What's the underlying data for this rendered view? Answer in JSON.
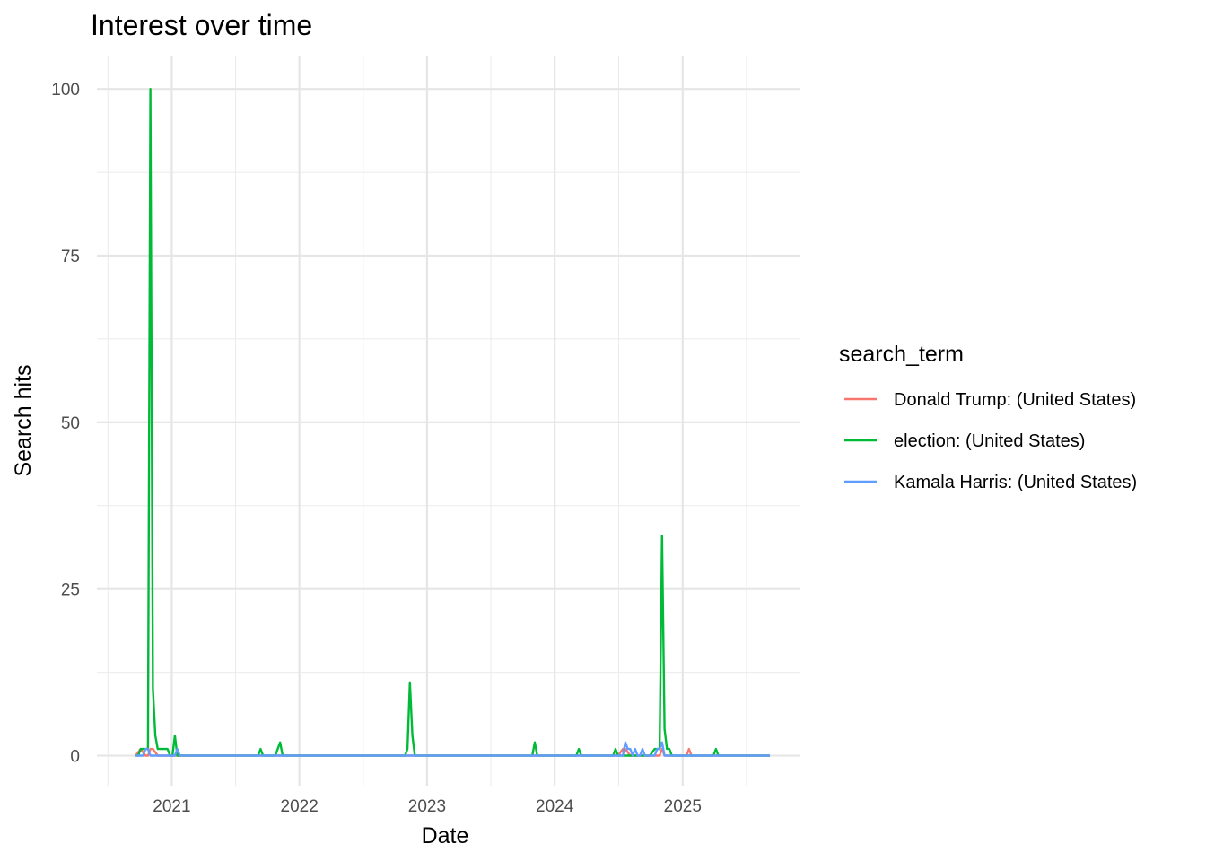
{
  "chart_data": {
    "type": "line",
    "title": "Interest over time",
    "xlabel": "Date",
    "ylabel": "Search hits",
    "x_axis_type": "date",
    "xlim": [
      "2020-06-01",
      "2025-12-01"
    ],
    "ylim": [
      -4.5,
      105
    ],
    "x_ticks": [
      "2021-01-01",
      "2022-01-01",
      "2023-01-01",
      "2024-01-01",
      "2025-01-01"
    ],
    "x_tick_labels": [
      "2021",
      "2022",
      "2023",
      "2024",
      "2025"
    ],
    "y_ticks": [
      0,
      25,
      50,
      75,
      100
    ],
    "y_tick_labels": [
      "0",
      "25",
      "50",
      "75",
      "100"
    ],
    "grid": true,
    "legend": {
      "title": "search_term",
      "position": "right"
    },
    "series": [
      {
        "name": "Donald Trump: (United States)",
        "color": "#F8766D",
        "points": [
          [
            "2020-09-20",
            0
          ],
          [
            "2020-10-04",
            1
          ],
          [
            "2020-10-18",
            0
          ],
          [
            "2020-10-25",
            0
          ],
          [
            "2020-11-01",
            1
          ],
          [
            "2020-11-08",
            1
          ],
          [
            "2020-11-22",
            0
          ],
          [
            "2021-01-10",
            0
          ],
          [
            "2024-06-30",
            0
          ],
          [
            "2024-07-14",
            1
          ],
          [
            "2024-07-21",
            1
          ],
          [
            "2024-08-04",
            0
          ],
          [
            "2024-10-27",
            0
          ],
          [
            "2024-11-03",
            1
          ],
          [
            "2024-11-10",
            0
          ],
          [
            "2025-01-12",
            0
          ],
          [
            "2025-01-19",
            1
          ],
          [
            "2025-01-26",
            0
          ],
          [
            "2025-09-07",
            0
          ]
        ]
      },
      {
        "name": "election: (United States)",
        "color": "#00BA38",
        "points": [
          [
            "2020-09-20",
            0
          ],
          [
            "2020-09-27",
            0
          ],
          [
            "2020-10-04",
            1
          ],
          [
            "2020-10-25",
            1
          ],
          [
            "2020-11-01",
            100
          ],
          [
            "2020-11-08",
            10
          ],
          [
            "2020-11-15",
            3
          ],
          [
            "2020-11-22",
            1
          ],
          [
            "2020-12-20",
            1
          ],
          [
            "2020-12-27",
            0
          ],
          [
            "2021-01-03",
            0
          ],
          [
            "2021-01-10",
            3
          ],
          [
            "2021-01-17",
            0
          ],
          [
            "2021-09-05",
            0
          ],
          [
            "2021-09-12",
            1
          ],
          [
            "2021-09-19",
            0
          ],
          [
            "2021-10-24",
            0
          ],
          [
            "2021-11-07",
            2
          ],
          [
            "2021-11-14",
            0
          ],
          [
            "2022-10-30",
            0
          ],
          [
            "2022-11-06",
            1
          ],
          [
            "2022-11-13",
            11
          ],
          [
            "2022-11-20",
            3
          ],
          [
            "2022-11-27",
            0
          ],
          [
            "2023-10-29",
            0
          ],
          [
            "2023-11-05",
            2
          ],
          [
            "2023-11-12",
            0
          ],
          [
            "2024-03-03",
            0
          ],
          [
            "2024-03-10",
            1
          ],
          [
            "2024-03-17",
            0
          ],
          [
            "2024-06-16",
            0
          ],
          [
            "2024-06-23",
            1
          ],
          [
            "2024-06-30",
            0
          ],
          [
            "2024-09-29",
            0
          ],
          [
            "2024-10-13",
            1
          ],
          [
            "2024-10-27",
            1
          ],
          [
            "2024-11-03",
            33
          ],
          [
            "2024-11-10",
            4
          ],
          [
            "2024-11-17",
            1
          ],
          [
            "2024-11-24",
            1
          ],
          [
            "2024-12-01",
            0
          ],
          [
            "2025-03-30",
            0
          ],
          [
            "2025-04-06",
            1
          ],
          [
            "2025-04-13",
            0
          ],
          [
            "2025-09-07",
            0
          ]
        ]
      },
      {
        "name": "Kamala Harris: (United States)",
        "color": "#619CFF",
        "points": [
          [
            "2020-09-20",
            0
          ],
          [
            "2020-10-11",
            0
          ],
          [
            "2020-10-18",
            1
          ],
          [
            "2020-10-25",
            1
          ],
          [
            "2020-11-01",
            0
          ],
          [
            "2021-01-10",
            0
          ],
          [
            "2021-01-17",
            1
          ],
          [
            "2021-01-24",
            0
          ],
          [
            "2024-07-14",
            0
          ],
          [
            "2024-07-21",
            2
          ],
          [
            "2024-07-28",
            1
          ],
          [
            "2024-08-04",
            1
          ],
          [
            "2024-08-11",
            0
          ],
          [
            "2024-08-18",
            1
          ],
          [
            "2024-08-25",
            0
          ],
          [
            "2024-09-01",
            0
          ],
          [
            "2024-09-08",
            1
          ],
          [
            "2024-09-15",
            0
          ],
          [
            "2024-10-13",
            0
          ],
          [
            "2024-10-20",
            1
          ],
          [
            "2024-10-27",
            1
          ],
          [
            "2024-11-03",
            2
          ],
          [
            "2024-11-10",
            0
          ],
          [
            "2025-09-07",
            0
          ]
        ]
      }
    ]
  }
}
